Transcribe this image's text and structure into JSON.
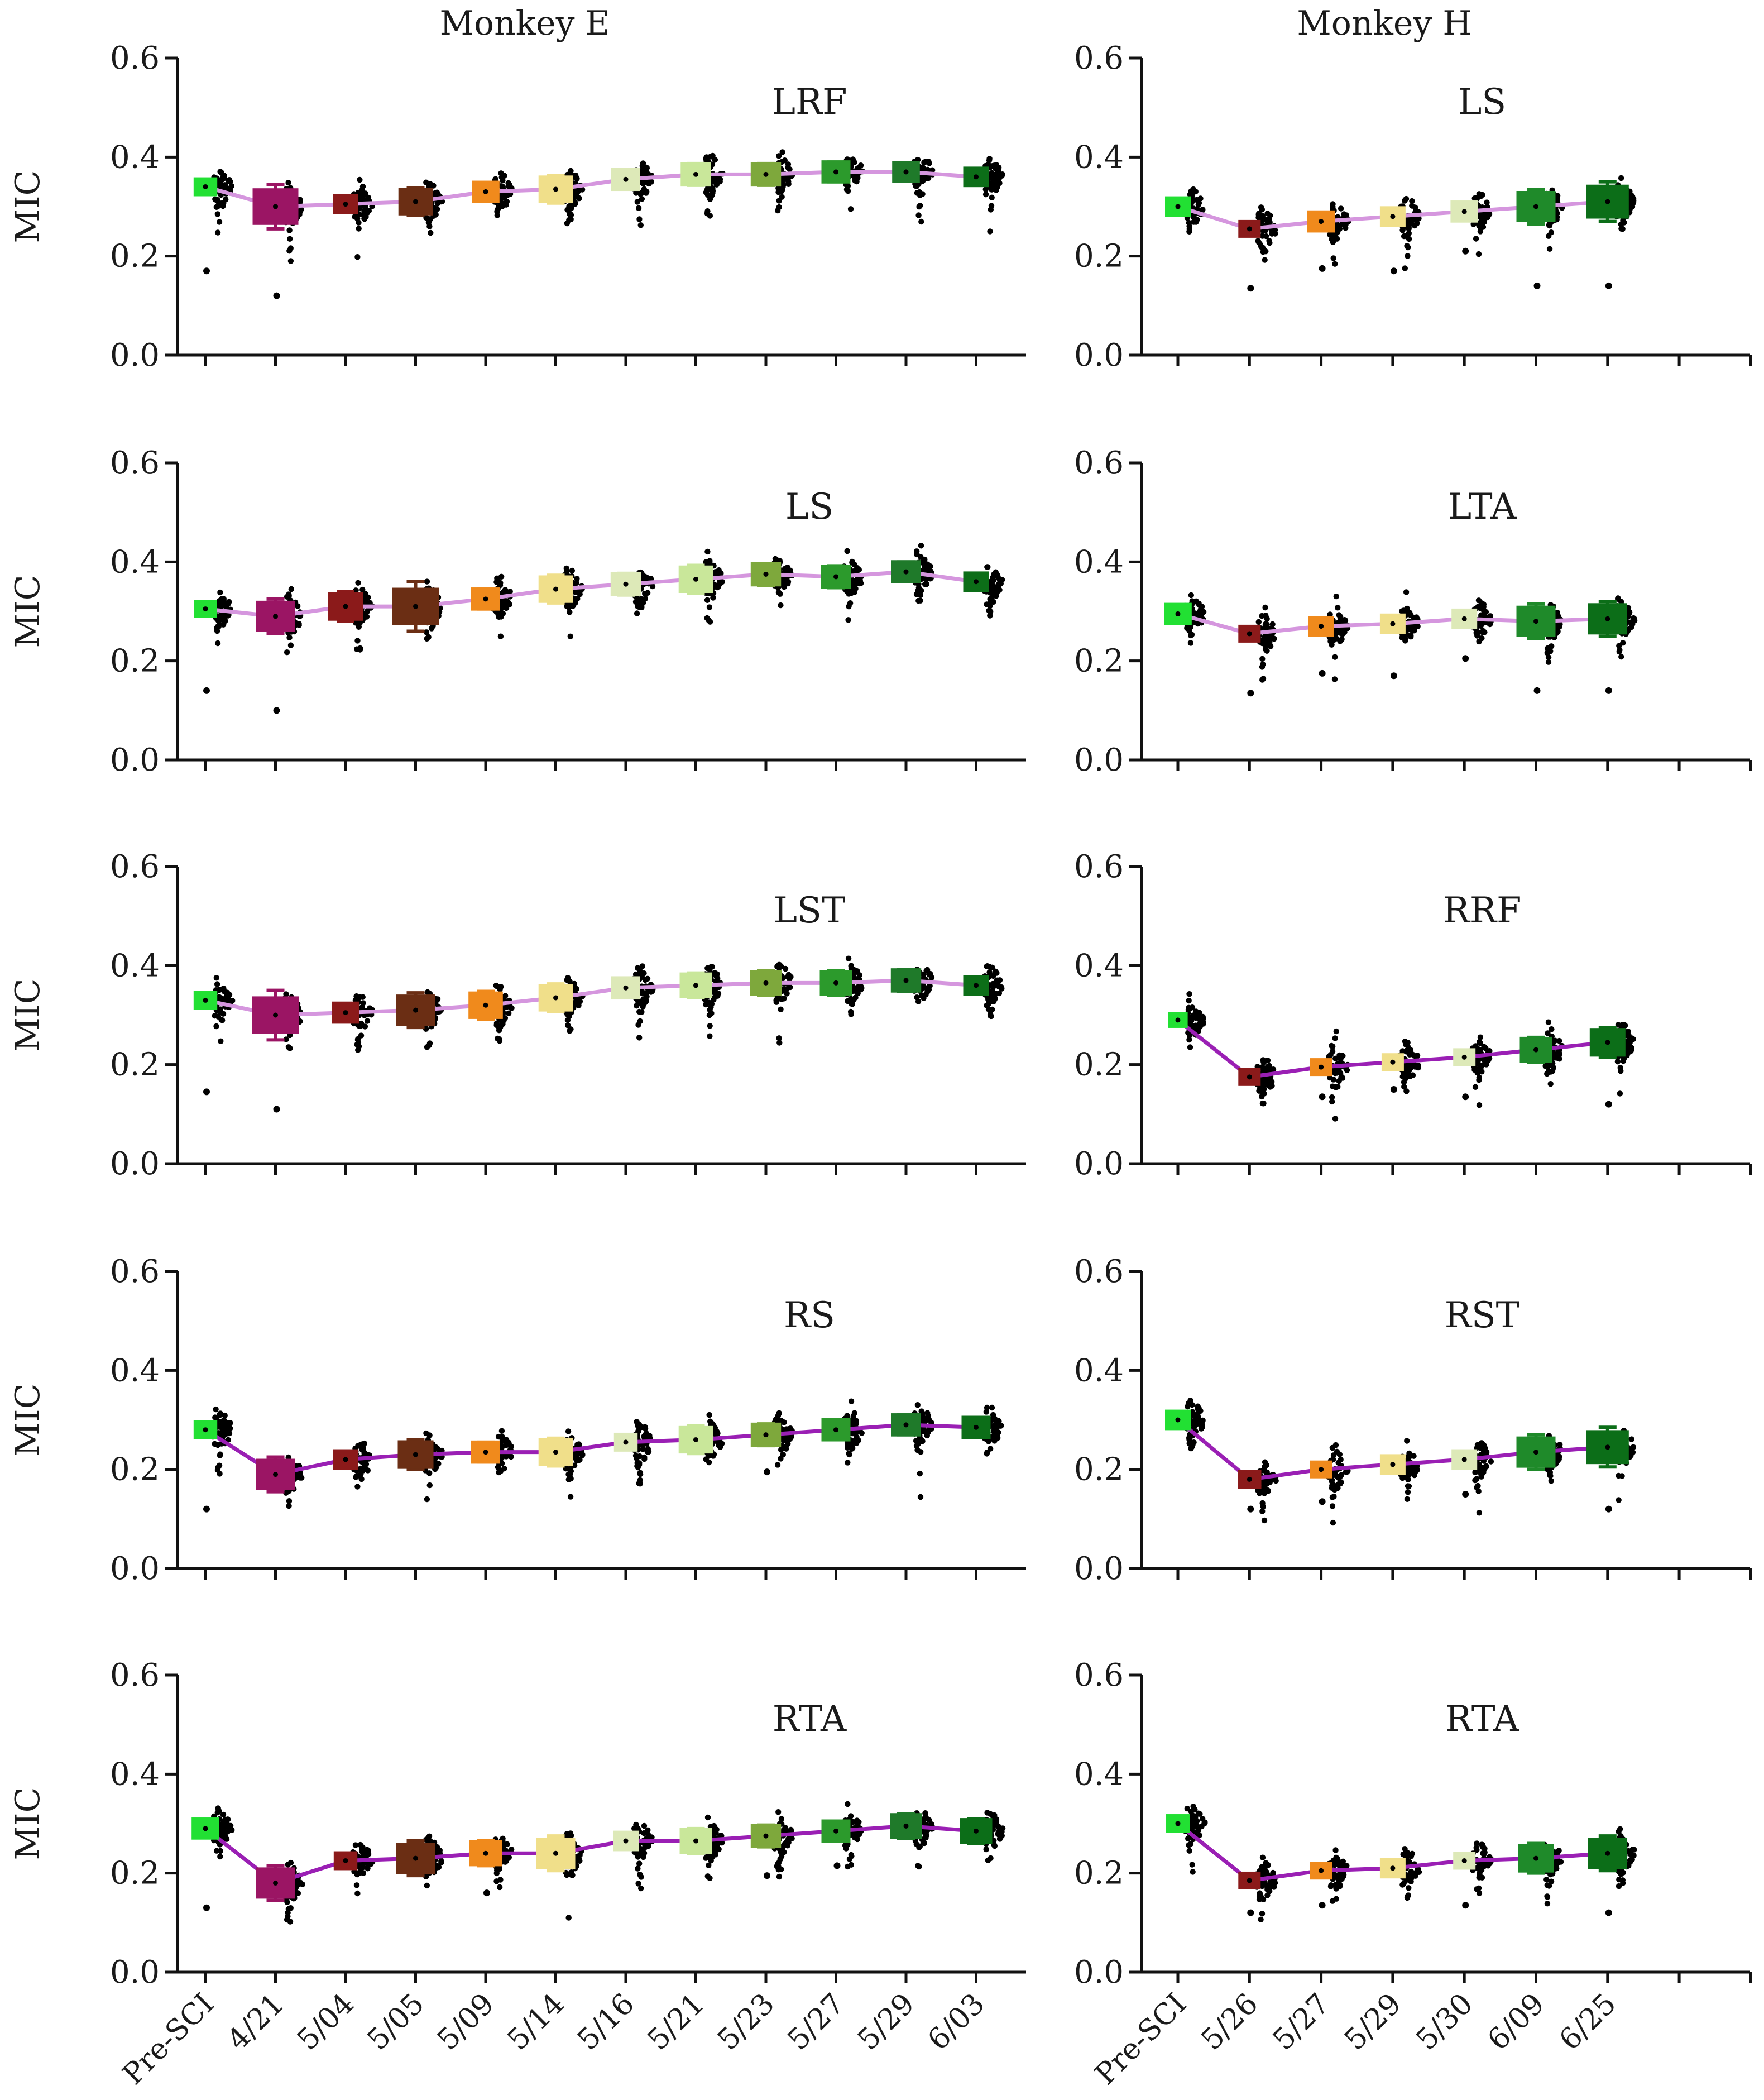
{
  "chart_data": [
    {
      "type": "scatter",
      "column_title": "Monkey E",
      "title": "LRF",
      "ylabel": "MIC",
      "ylim": [
        0,
        0.6
      ],
      "yticks": [
        "0.0",
        "0.2",
        "0.4",
        "0.6"
      ],
      "categories": [
        "Pre-SCI",
        "4/21",
        "5/04",
        "5/05",
        "5/09",
        "5/14",
        "5/16",
        "5/21",
        "5/23",
        "5/27",
        "5/29",
        "6/03"
      ],
      "means": [
        0.34,
        0.3,
        0.305,
        0.31,
        0.33,
        0.335,
        0.355,
        0.365,
        0.365,
        0.37,
        0.37,
        0.36
      ],
      "errors": [
        0.012,
        0.045,
        0.015,
        0.028,
        0.018,
        0.028,
        0.02,
        0.022,
        0.022,
        0.02,
        0.018,
        0.015
      ],
      "line_color": "#d596de",
      "outliers": [
        [
          0,
          0.17
        ],
        [
          1,
          0.12
        ]
      ]
    },
    {
      "type": "scatter",
      "column_title": "Monkey H",
      "title": "LS",
      "ylabel": "",
      "ylim": [
        0,
        0.6
      ],
      "yticks": [
        "0.0",
        "0.2",
        "0.4",
        "0.6"
      ],
      "categories": [
        "Pre-SCI",
        "5/26",
        "5/27",
        "5/29",
        "5/30",
        "6/09",
        "6/25"
      ],
      "means": [
        0.3,
        0.255,
        0.27,
        0.28,
        0.29,
        0.3,
        0.31
      ],
      "errors": [
        0.015,
        0.01,
        0.018,
        0.015,
        0.018,
        0.035,
        0.04
      ],
      "line_color": "#d596de",
      "outliers": [
        [
          1,
          0.135
        ],
        [
          2,
          0.175
        ],
        [
          3,
          0.17
        ],
        [
          4,
          0.21
        ],
        [
          5,
          0.14
        ],
        [
          6,
          0.14
        ]
      ]
    },
    {
      "type": "scatter",
      "column_title": "",
      "title": "LS",
      "ylabel": "MIC",
      "ylim": [
        0,
        0.6
      ],
      "yticks": [
        "0.0",
        "0.2",
        "0.4",
        "0.6"
      ],
      "categories": [
        "Pre-SCI",
        "4/21",
        "5/04",
        "5/05",
        "5/09",
        "5/14",
        "5/16",
        "5/21",
        "5/23",
        "5/27",
        "5/29",
        "6/03"
      ],
      "means": [
        0.305,
        0.29,
        0.31,
        0.31,
        0.325,
        0.345,
        0.355,
        0.365,
        0.375,
        0.37,
        0.38,
        0.36
      ],
      "errors": [
        0.01,
        0.035,
        0.03,
        0.05,
        0.02,
        0.028,
        0.022,
        0.028,
        0.022,
        0.022,
        0.02,
        0.015
      ],
      "line_color": "#d596de",
      "outliers": [
        [
          0,
          0.14
        ],
        [
          1,
          0.1
        ]
      ]
    },
    {
      "type": "scatter",
      "column_title": "",
      "title": "LTA",
      "ylabel": "",
      "ylim": [
        0,
        0.6
      ],
      "yticks": [
        "0.0",
        "0.2",
        "0.4",
        "0.6"
      ],
      "categories": [
        "Pre-SCI",
        "5/26",
        "5/27",
        "5/29",
        "5/30",
        "6/09",
        "6/25"
      ],
      "means": [
        0.295,
        0.255,
        0.27,
        0.275,
        0.285,
        0.28,
        0.285
      ],
      "errors": [
        0.018,
        0.01,
        0.015,
        0.015,
        0.015,
        0.035,
        0.035
      ],
      "line_color": "#d596de",
      "outliers": [
        [
          1,
          0.135
        ],
        [
          2,
          0.175
        ],
        [
          3,
          0.17
        ],
        [
          4,
          0.205
        ],
        [
          5,
          0.14
        ],
        [
          6,
          0.14
        ]
      ]
    },
    {
      "type": "scatter",
      "column_title": "",
      "title": "LST",
      "ylabel": "MIC",
      "ylim": [
        0,
        0.6
      ],
      "yticks": [
        "0.0",
        "0.2",
        "0.4",
        "0.6"
      ],
      "categories": [
        "Pre-SCI",
        "4/21",
        "5/04",
        "5/05",
        "5/09",
        "5/14",
        "5/16",
        "5/21",
        "5/23",
        "5/27",
        "5/29",
        "6/03"
      ],
      "means": [
        0.33,
        0.3,
        0.305,
        0.31,
        0.32,
        0.335,
        0.355,
        0.36,
        0.365,
        0.365,
        0.37,
        0.36
      ],
      "errors": [
        0.012,
        0.05,
        0.018,
        0.035,
        0.028,
        0.028,
        0.02,
        0.025,
        0.025,
        0.025,
        0.022,
        0.015
      ],
      "line_color": "#d596de",
      "outliers": [
        [
          0,
          0.145
        ],
        [
          1,
          0.11
        ]
      ]
    },
    {
      "type": "scatter",
      "column_title": "",
      "title": "RRF",
      "ylabel": "",
      "ylim": [
        0,
        0.6
      ],
      "yticks": [
        "0.0",
        "0.2",
        "0.4",
        "0.6"
      ],
      "categories": [
        "Pre-SCI",
        "5/26",
        "5/27",
        "5/29",
        "5/30",
        "6/09",
        "6/25"
      ],
      "means": [
        0.29,
        0.175,
        0.195,
        0.205,
        0.215,
        0.23,
        0.245
      ],
      "errors": [
        0.006,
        0.01,
        0.01,
        0.01,
        0.01,
        0.025,
        0.03
      ],
      "line_color": "#9a1fb4",
      "outliers": [
        [
          2,
          0.135
        ],
        [
          3,
          0.15
        ],
        [
          4,
          0.135
        ],
        [
          6,
          0.12
        ]
      ]
    },
    {
      "type": "scatter",
      "column_title": "",
      "title": "RS",
      "ylabel": "MIC",
      "ylim": [
        0,
        0.6
      ],
      "yticks": [
        "0.0",
        "0.2",
        "0.4",
        "0.6"
      ],
      "categories": [
        "Pre-SCI",
        "4/21",
        "5/04",
        "5/05",
        "5/09",
        "5/14",
        "5/16",
        "5/21",
        "5/23",
        "5/27",
        "5/29",
        "6/03"
      ],
      "means": [
        0.28,
        0.19,
        0.22,
        0.23,
        0.235,
        0.235,
        0.255,
        0.26,
        0.27,
        0.28,
        0.29,
        0.285
      ],
      "errors": [
        0.012,
        0.035,
        0.015,
        0.03,
        0.02,
        0.028,
        0.012,
        0.028,
        0.022,
        0.02,
        0.02,
        0.02
      ],
      "line_color": "#9a1fb4",
      "outliers": [
        [
          0,
          0.12
        ],
        [
          8,
          0.195
        ]
      ]
    },
    {
      "type": "scatter",
      "column_title": "",
      "title": "RST",
      "ylabel": "",
      "ylim": [
        0,
        0.6
      ],
      "yticks": [
        "0.0",
        "0.2",
        "0.4",
        "0.6"
      ],
      "categories": [
        "Pre-SCI",
        "5/26",
        "5/27",
        "5/29",
        "5/30",
        "6/09",
        "6/25"
      ],
      "means": [
        0.3,
        0.18,
        0.2,
        0.21,
        0.22,
        0.235,
        0.245
      ],
      "errors": [
        0.015,
        0.012,
        0.01,
        0.015,
        0.015,
        0.035,
        0.04
      ],
      "line_color": "#9a1fb4",
      "outliers": [
        [
          1,
          0.12
        ],
        [
          2,
          0.135
        ],
        [
          4,
          0.15
        ],
        [
          6,
          0.12
        ]
      ]
    },
    {
      "type": "scatter",
      "column_title": "",
      "title": "RTA",
      "ylabel": "MIC",
      "ylim": [
        0,
        0.6
      ],
      "yticks": [
        "0.0",
        "0.2",
        "0.4",
        "0.6"
      ],
      "categories": [
        "Pre-SCI",
        "4/21",
        "5/04",
        "5/05",
        "5/09",
        "5/14",
        "5/16",
        "5/21",
        "5/23",
        "5/27",
        "5/29",
        "6/03"
      ],
      "means": [
        0.29,
        0.18,
        0.225,
        0.23,
        0.24,
        0.24,
        0.265,
        0.265,
        0.275,
        0.285,
        0.295,
        0.285
      ],
      "errors": [
        0.018,
        0.035,
        0.012,
        0.035,
        0.025,
        0.035,
        0.015,
        0.025,
        0.022,
        0.02,
        0.025,
        0.025
      ],
      "line_color": "#9a1fb4",
      "outliers": [
        [
          0,
          0.13
        ],
        [
          4,
          0.16
        ],
        [
          8,
          0.195
        ],
        [
          9,
          0.215
        ]
      ]
    },
    {
      "type": "scatter",
      "column_title": "",
      "title": "RTA",
      "ylabel": "",
      "ylim": [
        0,
        0.6
      ],
      "yticks": [
        "0.0",
        "0.2",
        "0.4",
        "0.6"
      ],
      "categories": [
        "Pre-SCI",
        "5/26",
        "5/27",
        "5/29",
        "5/30",
        "6/09",
        "6/25"
      ],
      "means": [
        0.3,
        0.185,
        0.205,
        0.21,
        0.225,
        0.23,
        0.24
      ],
      "errors": [
        0.012,
        0.01,
        0.01,
        0.015,
        0.01,
        0.03,
        0.035
      ],
      "line_color": "#9a1fb4",
      "outliers": [
        [
          1,
          0.12
        ],
        [
          2,
          0.135
        ],
        [
          4,
          0.135
        ],
        [
          6,
          0.12
        ]
      ]
    }
  ],
  "colors": {
    "left": [
      "#22e033",
      "#9b1564",
      "#8b1a1a",
      "#6b2e14",
      "#f08a1c",
      "#f0df8a",
      "#dde9b8",
      "#c9e79a",
      "#7ea83c",
      "#2c9a2c",
      "#1f7a2a",
      "#0c6e18"
    ],
    "right": [
      "#22e033",
      "#8b1a1a",
      "#f08a1c",
      "#f0df8a",
      "#dde9b8",
      "#1f8a2a",
      "#0c6e18"
    ],
    "point": "#000000"
  }
}
